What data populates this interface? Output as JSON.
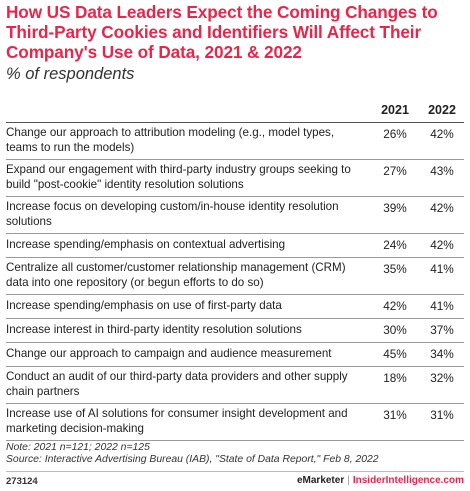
{
  "chart_data": {
    "type": "table",
    "title": "How US Data Leaders Expect the Coming Changes to Third-Party Cookies and Identifiers Will Affect Their Company's Use of Data, 2021 & 2022",
    "subtitle": "% of respondents",
    "columns": [
      "2021",
      "2022"
    ],
    "rows": [
      {
        "label": "Change our approach to attribution modeling (e.g., model types, teams to run the models)",
        "v2021": "26%",
        "v2022": "42%"
      },
      {
        "label": "Expand our engagement with third-party industry groups seeking to build \"post-cookie\" identity resolution solutions",
        "v2021": "27%",
        "v2022": "43%"
      },
      {
        "label": "Increase focus on developing custom/in-house identity resolution solutions",
        "v2021": "39%",
        "v2022": "42%"
      },
      {
        "label": "Increase spending/emphasis on contextual advertising",
        "v2021": "24%",
        "v2022": "42%"
      },
      {
        "label": "Centralize all customer/customer relationship management (CRM) data into one repository (or begun efforts to do so)",
        "v2021": "35%",
        "v2022": "41%"
      },
      {
        "label": "Increase spending/emphasis on use of first-party data",
        "v2021": "42%",
        "v2022": "41%"
      },
      {
        "label": "Increase interest in third-party identity resolution solutions",
        "v2021": "30%",
        "v2022": "37%"
      },
      {
        "label": "Change our approach to campaign and audience measurement",
        "v2021": "45%",
        "v2022": "34%"
      },
      {
        "label": "Conduct an audit of our third-party data providers and other supply chain partners",
        "v2021": "18%",
        "v2022": "32%"
      },
      {
        "label": "Increase use of AI solutions for consumer insight development and marketing decision-making",
        "v2021": "31%",
        "v2022": "31%"
      }
    ],
    "note": "Note: 2021 n=121; 2022 n=125",
    "source": "Source: Interactive Advertising Bureau (IAB), \"State of Data Report,\" Feb 8, 2022"
  },
  "footer": {
    "id": "273124",
    "brand_left": "eMarketer",
    "separator": "|",
    "brand_right": "InsiderIntelligence.com"
  },
  "colors": {
    "title": "#e8264a",
    "text": "#222222"
  }
}
